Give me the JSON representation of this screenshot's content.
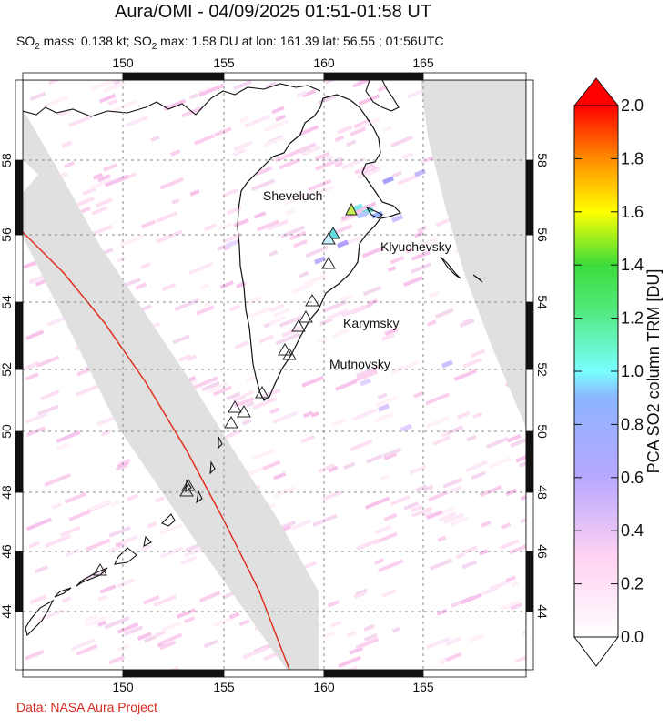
{
  "title": "Aura/OMI - 04/09/2025 01:51-01:58 UT",
  "subtitle": {
    "mass_label": "SO",
    "mass_sub": "2",
    "mass_text": " mass: 0.138 kt; SO",
    "max_sub": "2",
    "max_text": " max: 1.58 DU at lon: 161.39 lat: 56.55 ; 01:56UTC"
  },
  "credit": "Data: NASA Aura Project",
  "map": {
    "lon_ticks": [
      "150",
      "155",
      "160",
      "165"
    ],
    "lat_ticks": [
      "44",
      "46",
      "48",
      "50",
      "52",
      "54",
      "56",
      "58"
    ],
    "volcanoes": [
      "Sheveluch",
      "Klyuchevsky",
      "Karymsky",
      "Mutnovsky"
    ]
  },
  "colorbar": {
    "title": "PCA SO2 column TRM [DU]",
    "ticks": [
      "0.0",
      "0.2",
      "0.4",
      "0.6",
      "0.8",
      "1.0",
      "1.2",
      "1.4",
      "1.6",
      "1.8",
      "2.0"
    ],
    "min": 0.0,
    "max": 2.0,
    "colors": [
      "#ffffff",
      "#ffc8f0",
      "#b4a0ff",
      "#78ffff",
      "#3cdc3c",
      "#ffff00",
      "#ff8c00",
      "#ff0000"
    ]
  },
  "max_value_du": 1.58
}
